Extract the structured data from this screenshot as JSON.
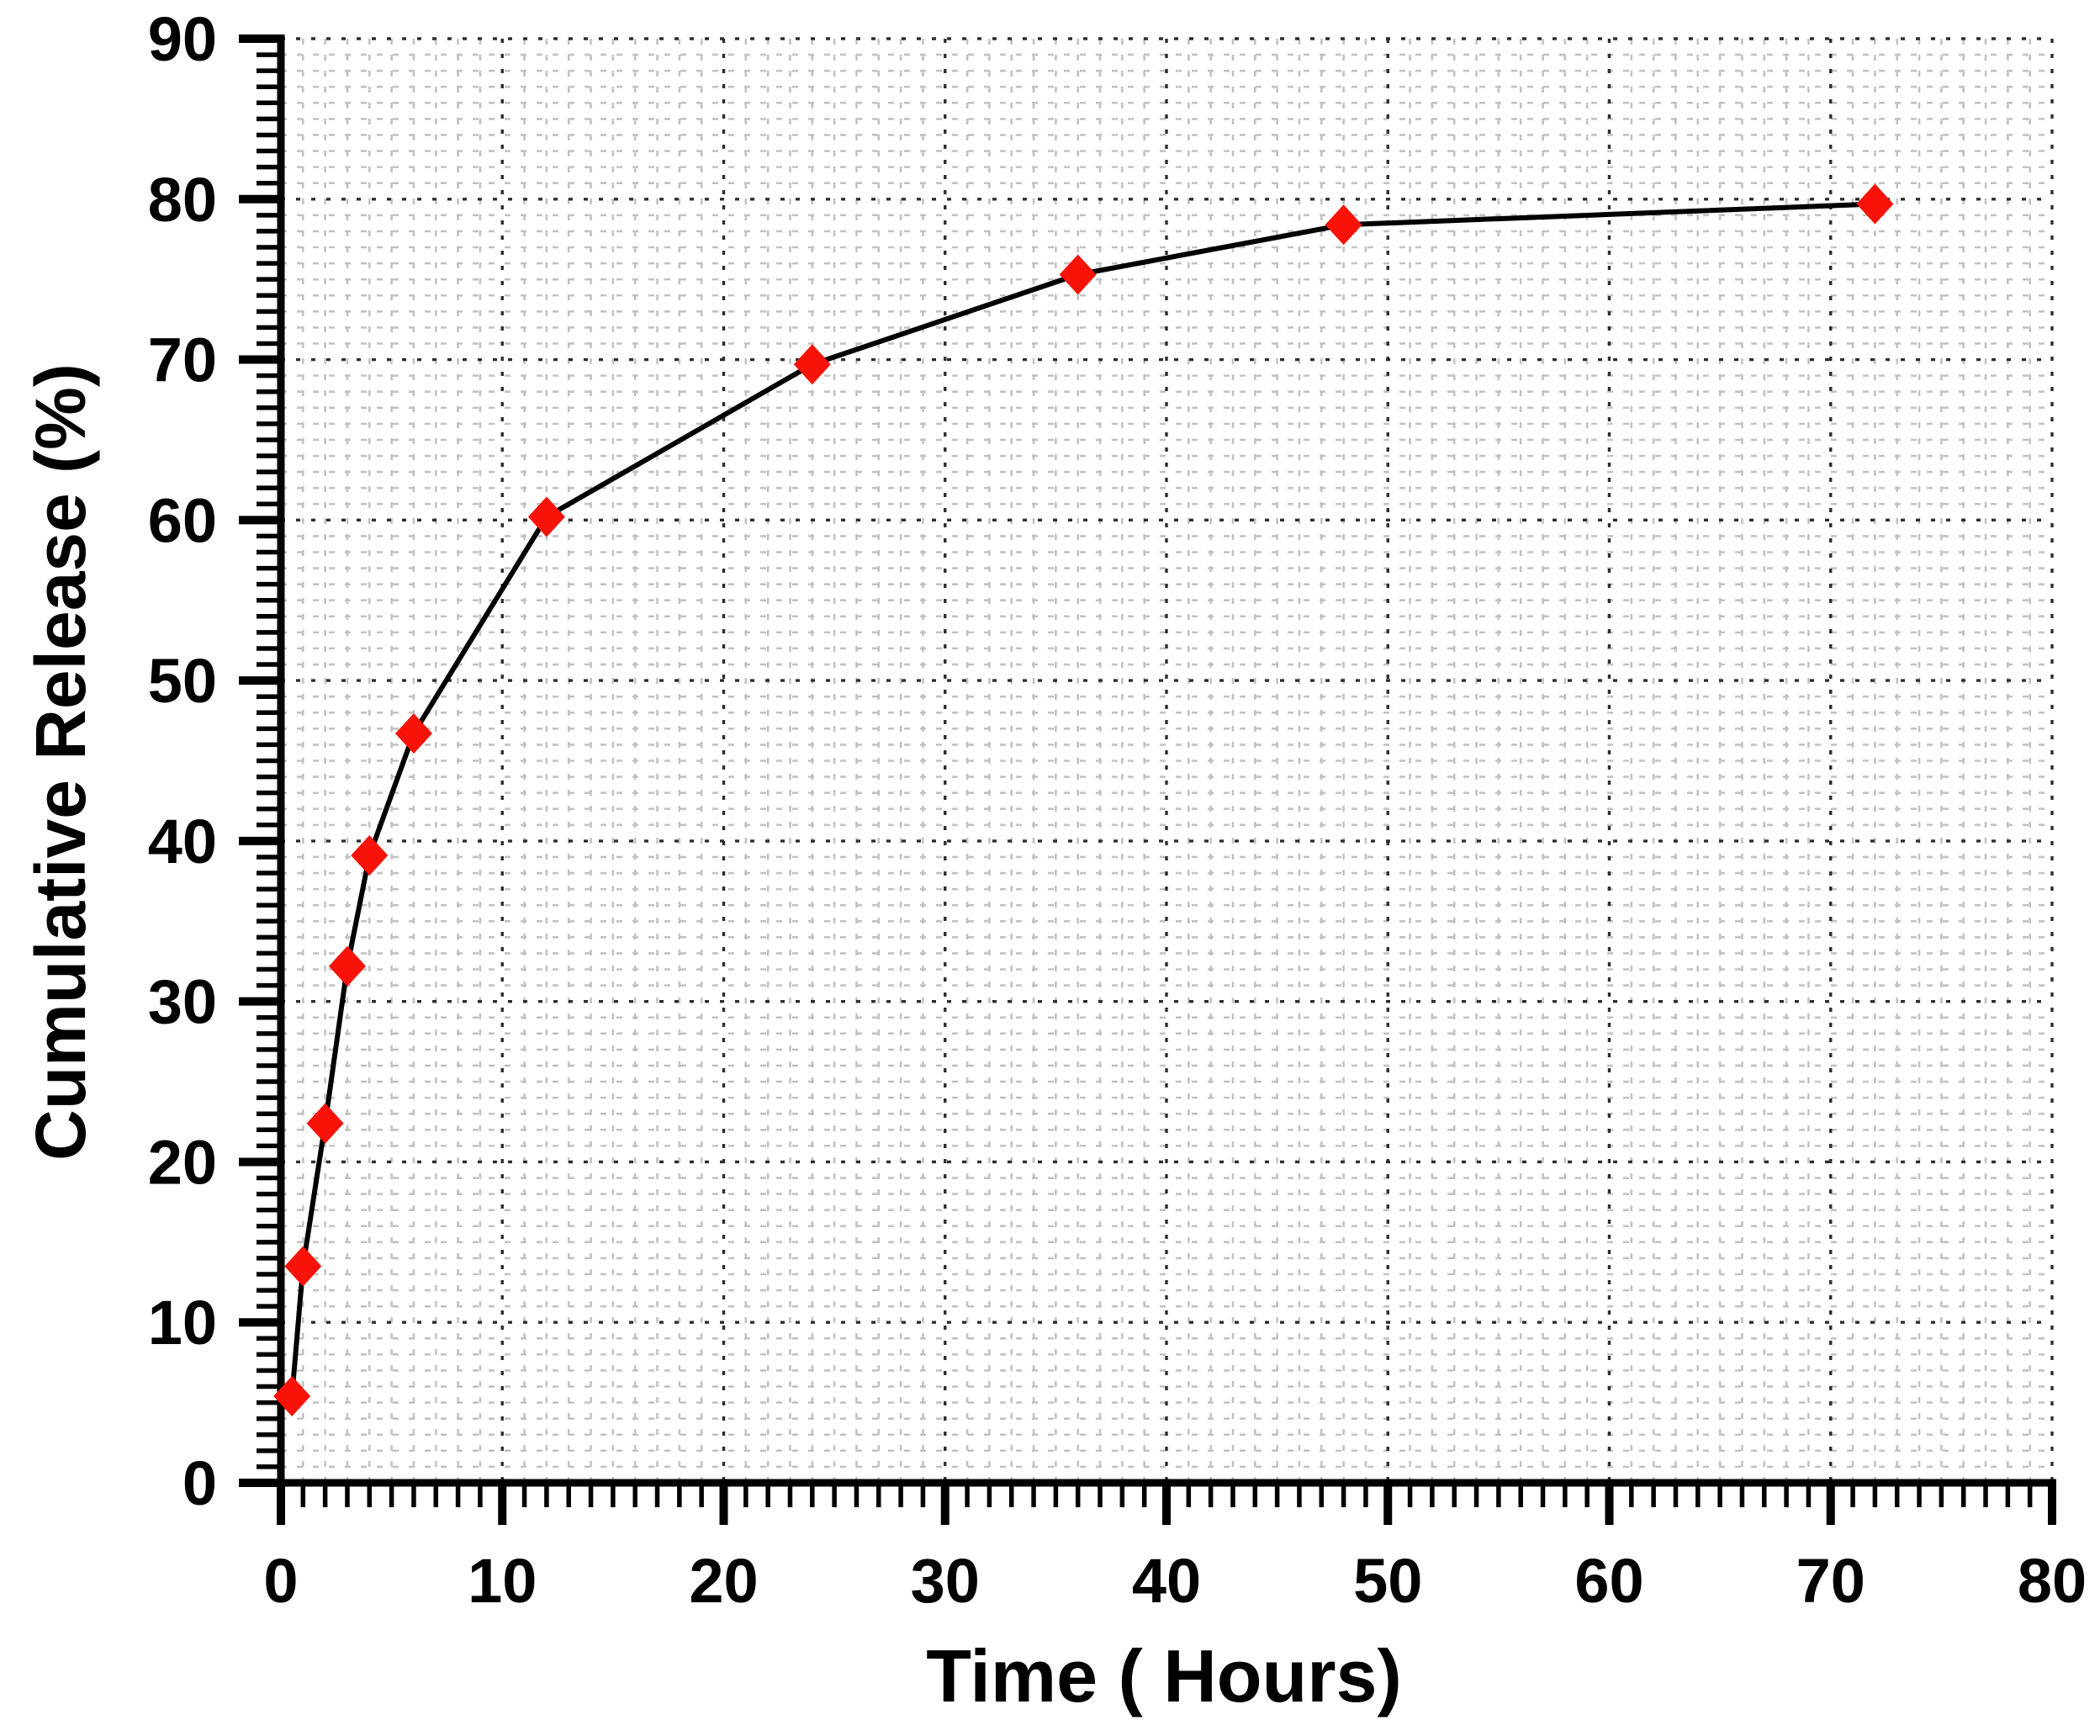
{
  "chart_data": {
    "type": "line",
    "title": "",
    "xlabel": "Time ( Hours)",
    "ylabel": "Cumulative Release (%)",
    "x": [
      0.5,
      1,
      2,
      3,
      4,
      6,
      12,
      24,
      36,
      48,
      72
    ],
    "y": [
      5.4,
      13.5,
      22.4,
      32.2,
      39.1,
      46.7,
      60.2,
      69.7,
      75.3,
      78.4,
      79.7
    ],
    "series_name": "Cumulative Release",
    "xlim": [
      0,
      80
    ],
    "ylim": [
      0,
      90
    ],
    "xticks": [
      0,
      10,
      20,
      30,
      40,
      50,
      60,
      70,
      80
    ],
    "yticks": [
      0,
      10,
      20,
      30,
      40,
      50,
      60,
      70,
      80,
      90
    ],
    "minor_step_x": 1,
    "minor_step_y": 1,
    "grid": "on",
    "legend": "none",
    "marker": "diamond",
    "marker_color": "#f81208",
    "line_color": "#000000",
    "axis_color": "#000000",
    "minor_grid_color": "#c2c2c2",
    "major_grid_color": "#2e2e2e"
  }
}
